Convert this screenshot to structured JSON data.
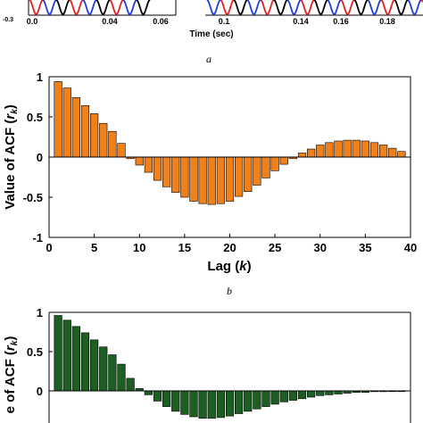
{
  "panels": {
    "a": "a",
    "b": "b"
  },
  "top_strip": {
    "xlabel": "Time (sec)",
    "x_ticks_left": [
      "0.0",
      "0.04",
      "0.06"
    ],
    "x_ticks_right": [
      "0.1",
      "0.14",
      "0.16",
      "0.18"
    ],
    "y_corner_label": "-0.3",
    "colors": {
      "red": "#e41f1f",
      "blue": "#1f3fd6",
      "black": "#000000"
    }
  },
  "chart_data": [
    {
      "type": "bar",
      "xlabel": "Lag (k)",
      "xlabel_main": "Lag (",
      "xlabel_var": "k",
      "xlabel_end": ")",
      "ylabel": "Value of ACF (r_k)",
      "ylabel_main": "Value of ACF (",
      "ylabel_var": "r",
      "ylabel_sub": "k",
      "ylabel_end": ")",
      "bar_color": "#f08019",
      "xlim": [
        0,
        40
      ],
      "ylim": [
        -1,
        1
      ],
      "x_ticks": [
        "0",
        "5",
        "10",
        "15",
        "20",
        "25",
        "30",
        "35",
        "40"
      ],
      "y_ticks": [
        "1",
        "0.5",
        "0",
        "-0.5",
        "-1"
      ],
      "grid": false,
      "x": [
        1,
        2,
        3,
        4,
        5,
        6,
        7,
        8,
        9,
        10,
        11,
        12,
        13,
        14,
        15,
        16,
        17,
        18,
        19,
        20,
        21,
        22,
        23,
        24,
        25,
        26,
        27,
        28,
        29,
        30,
        31,
        32,
        33,
        34,
        35,
        36,
        37,
        38,
        39
      ],
      "values": [
        0.94,
        0.86,
        0.74,
        0.64,
        0.54,
        0.42,
        0.32,
        0.17,
        -0.02,
        -0.1,
        -0.19,
        -0.29,
        -0.37,
        -0.44,
        -0.5,
        -0.55,
        -0.58,
        -0.59,
        -0.58,
        -0.55,
        -0.49,
        -0.43,
        -0.35,
        -0.26,
        -0.17,
        -0.09,
        -0.02,
        0.05,
        0.1,
        0.15,
        0.18,
        0.2,
        0.21,
        0.21,
        0.2,
        0.18,
        0.15,
        0.11,
        0.07
      ]
    },
    {
      "type": "bar",
      "ylabel_main": "e of ACF (",
      "ylabel_var": "r",
      "ylabel_sub": "k",
      "ylabel_end": ")",
      "bar_color": "#1d5e22",
      "xlim": [
        0,
        40
      ],
      "ylim": [
        -1,
        1
      ],
      "y_ticks": [
        "1",
        "0.5",
        "0"
      ],
      "grid": false,
      "x": [
        1,
        2,
        3,
        4,
        5,
        6,
        7,
        8,
        9,
        10,
        11,
        12,
        13,
        14,
        15,
        16,
        17,
        18,
        19,
        20,
        21,
        22,
        23,
        24,
        25,
        26,
        27,
        28,
        29,
        30,
        31,
        32,
        33,
        34,
        35,
        36,
        37,
        38,
        39
      ],
      "values": [
        0.96,
        0.9,
        0.82,
        0.74,
        0.65,
        0.56,
        0.46,
        0.34,
        0.16,
        0.03,
        -0.05,
        -0.13,
        -0.2,
        -0.26,
        -0.3,
        -0.33,
        -0.35,
        -0.35,
        -0.34,
        -0.32,
        -0.29,
        -0.26,
        -0.23,
        -0.2,
        -0.17,
        -0.14,
        -0.12,
        -0.1,
        -0.08,
        -0.06,
        -0.05,
        -0.04,
        -0.03,
        -0.02,
        -0.02,
        -0.01,
        -0.01,
        0.0,
        0.0
      ]
    }
  ]
}
